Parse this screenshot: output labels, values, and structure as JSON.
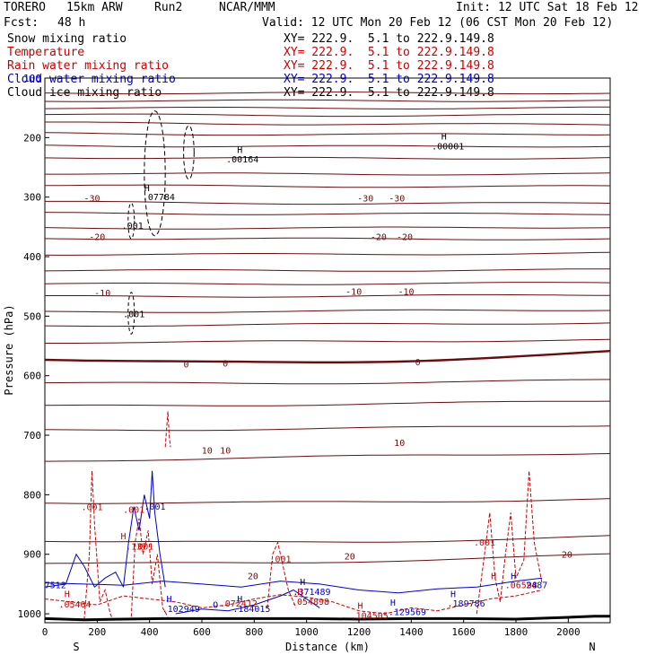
{
  "header": {
    "model": "TORERO",
    "resolution": "15km ARW",
    "run": "Run2",
    "org": "NCAR/MMM",
    "init": "Init: 12 UTC Sat 18 Feb 12",
    "fcst_label": "Fcst:",
    "fcst_value": "48 h",
    "valid": "Valid: 12 UTC Mon 20 Feb 12 (06 CST Mon 20 Feb 12)"
  },
  "legend": [
    {
      "name": "Snow mixing ratio",
      "color": "#000000",
      "xy": "XY= 222.9.  5.1 to 222.9.149.8"
    },
    {
      "name": "Temperature",
      "color": "#cc0000",
      "xy": "XY= 222.9.  5.1 to 222.9.149.8"
    },
    {
      "name": "Rain water mixing ratio",
      "color": "#cc0000",
      "xy": "XY= 222.9.  5.1 to 222.9.149.8"
    },
    {
      "name": "Cloud water mixing ratio",
      "color": "#0000cc",
      "xy": "XY= 222.9.  5.1 to 222.9.149.8"
    },
    {
      "name": "Cloud ice mixing ratio",
      "color": "#000000",
      "xy": "XY= 222.9.  5.1 to 222.9.149.8"
    }
  ],
  "colors": {
    "temperature": "#6b0c0c",
    "rain": "#cc0000",
    "cloud_water": "#0000cc",
    "ice_snow": "#000000",
    "terrain": "#000000"
  },
  "chart_data": {
    "type": "cross-section contour",
    "xlabel": "Distance (km)",
    "ylabel": "Pressure (hPa)",
    "xlim": [
      0,
      2160
    ],
    "ylim": [
      1015,
      100
    ],
    "x_ticks": [
      0,
      200,
      400,
      600,
      800,
      1000,
      1200,
      1400,
      1600,
      1800,
      2000
    ],
    "y_ticks": [
      200,
      300,
      400,
      500,
      600,
      700,
      800,
      900,
      1000
    ],
    "top_tick_label": "100",
    "end_labels": {
      "left": "S",
      "right": "N"
    },
    "isotherms": [
      {
        "p": [
          125,
          125,
          125
        ],
        "label": ""
      },
      {
        "p": [
          138,
          138,
          138
        ],
        "label": ""
      },
      {
        "p": [
          150,
          151,
          150
        ],
        "label": ""
      },
      {
        "p": [
          161,
          164,
          162
        ],
        "label": ""
      },
      {
        "p": [
          175,
          178,
          178
        ],
        "label": ""
      },
      {
        "p": [
          193,
          196,
          194
        ],
        "label": ""
      },
      {
        "p": [
          213,
          216,
          214
        ],
        "label": ""
      },
      {
        "p": [
          233,
          236,
          234
        ],
        "label": ""
      },
      {
        "p": [
          260,
          262,
          261
        ],
        "label": ""
      },
      {
        "p": [
          280,
          283,
          282
        ],
        "label": ""
      },
      {
        "p": [
          308,
          312,
          310
        ],
        "label": "-30"
      },
      {
        "p": [
          327,
          329,
          328
        ],
        "label": ""
      },
      {
        "p": [
          352,
          353,
          350
        ],
        "label": ""
      },
      {
        "p": [
          369,
          371,
          370
        ],
        "label": "-20"
      },
      {
        "p": [
          396,
          397,
          394
        ],
        "label": ""
      },
      {
        "p": [
          423,
          424,
          422
        ],
        "label": ""
      },
      {
        "p": [
          446,
          446,
          444
        ],
        "label": ""
      },
      {
        "p": [
          467,
          467,
          464
        ],
        "label": "-10"
      },
      {
        "p": [
          493,
          492,
          489
        ],
        "label": ""
      },
      {
        "p": [
          516,
          514,
          511
        ],
        "label": ""
      },
      {
        "p": [
          544,
          543,
          540
        ],
        "label": ""
      },
      {
        "p": [
          572,
          588,
          560
        ],
        "label": "0",
        "bold": true
      },
      {
        "p": [
          612,
          615,
          607
        ],
        "label": ""
      },
      {
        "p": [
          651,
          650,
          642
        ],
        "label": ""
      },
      {
        "p": [
          692,
          690,
          683
        ],
        "label": ""
      },
      {
        "p": [
          744,
          735,
          730
        ],
        "label": "10"
      },
      {
        "p": [
          813,
          815,
          807
        ],
        "label": ""
      },
      {
        "p": [
          877,
          885,
          870
        ],
        "label": ""
      },
      {
        "p": [
          915,
          918,
          900
        ],
        "label": "20"
      }
    ],
    "labels": [
      {
        "x": 180,
        "p": 307,
        "text": "-30",
        "color": "#6b0c0c"
      },
      {
        "x": 1225,
        "p": 307,
        "text": "-30",
        "color": "#6b0c0c"
      },
      {
        "x": 1345,
        "p": 307,
        "text": "-30",
        "color": "#6b0c0c"
      },
      {
        "x": 200,
        "p": 372,
        "text": "-20",
        "color": "#6b0c0c"
      },
      {
        "x": 1275,
        "p": 372,
        "text": "-20",
        "color": "#6b0c0c"
      },
      {
        "x": 1375,
        "p": 372,
        "text": "-20",
        "color": "#6b0c0c"
      },
      {
        "x": 220,
        "p": 466,
        "text": "-10",
        "color": "#6b0c0c"
      },
      {
        "x": 1180,
        "p": 464,
        "text": "-10",
        "color": "#6b0c0c"
      },
      {
        "x": 1380,
        "p": 464,
        "text": "-10",
        "color": "#6b0c0c"
      },
      {
        "x": 540,
        "p": 586,
        "text": "0",
        "color": "#6b0c0c"
      },
      {
        "x": 690,
        "p": 585,
        "text": "0",
        "color": "#6b0c0c"
      },
      {
        "x": 1425,
        "p": 582,
        "text": "0",
        "color": "#6b0c0c"
      },
      {
        "x": 620,
        "p": 731,
        "text": "10",
        "color": "#6b0c0c"
      },
      {
        "x": 690,
        "p": 731,
        "text": "10",
        "color": "#6b0c0c"
      },
      {
        "x": 1355,
        "p": 718,
        "text": "10",
        "color": "#6b0c0c"
      },
      {
        "x": 1165,
        "p": 909,
        "text": "20",
        "color": "#6b0c0c"
      },
      {
        "x": 1995,
        "p": 906,
        "text": "20",
        "color": "#6b0c0c"
      },
      {
        "x": 795,
        "p": 942,
        "text": "20",
        "color": "#6b0c0c"
      },
      {
        "x": 745,
        "p": 226,
        "text": "H",
        "color": "#000000"
      },
      {
        "x": 755,
        "p": 242,
        "text": ".00164",
        "color": "#000000"
      },
      {
        "x": 1525,
        "p": 203,
        "text": "H",
        "color": "#000000"
      },
      {
        "x": 1540,
        "p": 220,
        "text": ".00001",
        "color": "#000000"
      },
      {
        "x": 390,
        "p": 290,
        "text": "H",
        "color": "#000000"
      },
      {
        "x": 435,
        "p": 305,
        "text": ".07784",
        "color": "#000000"
      },
      {
        "x": 335,
        "p": 353,
        "text": ".001",
        "color": "#000000"
      },
      {
        "x": 340,
        "p": 502,
        "text": ".001",
        "color": "#000000"
      },
      {
        "x": 180,
        "p": 826,
        "text": ".001",
        "color": "#cc0000"
      },
      {
        "x": 340,
        "p": 830,
        "text": ".001",
        "color": "#cc0000"
      },
      {
        "x": 420,
        "p": 825,
        "text": ".001",
        "color": "#0000cc"
      },
      {
        "x": 300,
        "p": 875,
        "text": "H",
        "color": "#cc0000"
      },
      {
        "x": 350,
        "p": 892,
        "text": ".137",
        "color": "#cc0000"
      },
      {
        "x": 385,
        "p": 892,
        "text": "001",
        "color": "#cc0000"
      },
      {
        "x": 900,
        "p": 913,
        "text": ".001",
        "color": "#cc0000"
      },
      {
        "x": 1680,
        "p": 885,
        "text": ".001",
        "color": "#cc0000"
      },
      {
        "x": 1715,
        "p": 942,
        "text": "H",
        "color": "#cc0000"
      },
      {
        "x": 1790,
        "p": 942,
        "text": "H",
        "color": "#0000cc"
      },
      {
        "x": 1820,
        "p": 957,
        "text": ".06598",
        "color": "#cc0000"
      },
      {
        "x": 1880,
        "p": 957,
        "text": "2487",
        "color": "#0000cc"
      },
      {
        "x": 40,
        "p": 957,
        "text": "7512",
        "color": "#0000cc"
      },
      {
        "x": 85,
        "p": 972,
        "text": "H",
        "color": "#cc0000"
      },
      {
        "x": 115,
        "p": 989,
        "text": ".05404",
        "color": "#cc0000"
      },
      {
        "x": 475,
        "p": 980,
        "text": "H",
        "color": "#0000cc"
      },
      {
        "x": 520,
        "p": 997,
        "text": ".102949",
        "color": "#0000cc"
      },
      {
        "x": 652,
        "p": 990,
        "text": "O",
        "color": "#0000cc"
      },
      {
        "x": 745,
        "p": 980,
        "text": "H",
        "color": "#0000cc"
      },
      {
        "x": 790,
        "p": 997,
        "text": ".184015",
        "color": "#0000cc"
      },
      {
        "x": 740,
        "p": 988,
        "text": ".072412",
        "color": "#cc0000"
      },
      {
        "x": 985,
        "p": 952,
        "text": "H",
        "color": "#0000cc"
      },
      {
        "x": 1020,
        "p": 968,
        "text": ".371489",
        "color": "#0000cc"
      },
      {
        "x": 975,
        "p": 968,
        "text": "H",
        "color": "#cc0000"
      },
      {
        "x": 1015,
        "p": 985,
        "text": ".054898",
        "color": "#cc0000"
      },
      {
        "x": 1205,
        "p": 992,
        "text": "H",
        "color": "#cc0000"
      },
      {
        "x": 1240,
        "p": 1008,
        "text": ".104505",
        "color": "#cc0000"
      },
      {
        "x": 1330,
        "p": 986,
        "text": "H",
        "color": "#0000cc"
      },
      {
        "x": 1385,
        "p": 1002,
        "text": ".129569",
        "color": "#0000cc"
      },
      {
        "x": 1560,
        "p": 972,
        "text": "H",
        "color": "#0000cc"
      },
      {
        "x": 1610,
        "p": 988,
        "text": ".189786",
        "color": "#0000cc"
      }
    ],
    "terrain_p": [
      1008,
      1010,
      1009,
      1008,
      1008,
      1008,
      1008,
      1009,
      1008,
      1008,
      1009,
      1006,
      1004,
      1004
    ],
    "terrain_x": [
      0,
      150,
      300,
      450,
      600,
      800,
      1000,
      1200,
      1400,
      1600,
      1800,
      2000,
      2100,
      2160
    ]
  }
}
